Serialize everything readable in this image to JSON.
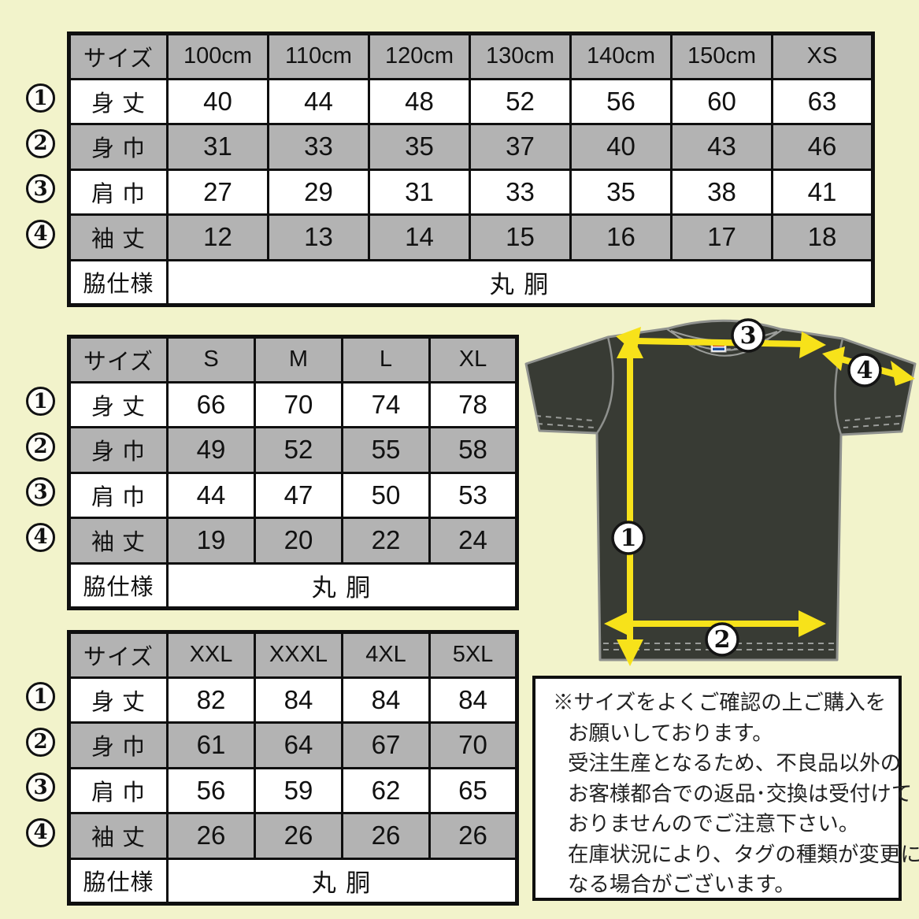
{
  "colors": {
    "background": "#f2f3cb",
    "shaded_cell": "#b3b3b3",
    "table_border": "#0f0f0f",
    "shirt_body": "#383b34",
    "shirt_outline": "#8f918e",
    "arrow_yellow": "#f7e21a",
    "tag_red": "#c5321f",
    "tag_blue": "#1f4fa0"
  },
  "tables": [
    {
      "header": [
        "サイズ",
        "100cm",
        "110cm",
        "120cm",
        "130cm",
        "140cm",
        "150cm",
        "XS"
      ],
      "rows": [
        {
          "num": "1",
          "label": "身 丈",
          "values": [
            "40",
            "44",
            "48",
            "52",
            "56",
            "60",
            "63"
          ]
        },
        {
          "num": "2",
          "label": "身 巾",
          "values": [
            "31",
            "33",
            "35",
            "37",
            "40",
            "43",
            "46"
          ]
        },
        {
          "num": "3",
          "label": "肩 巾",
          "values": [
            "27",
            "29",
            "31",
            "33",
            "35",
            "38",
            "41"
          ]
        },
        {
          "num": "4",
          "label": "袖 丈",
          "values": [
            "12",
            "13",
            "14",
            "15",
            "16",
            "17",
            "18"
          ]
        }
      ],
      "footer_label": "脇仕様",
      "footer_value": "丸 胴"
    },
    {
      "header": [
        "サイズ",
        "S",
        "M",
        "L",
        "XL"
      ],
      "rows": [
        {
          "num": "1",
          "label": "身 丈",
          "values": [
            "66",
            "70",
            "74",
            "78"
          ]
        },
        {
          "num": "2",
          "label": "身 巾",
          "values": [
            "49",
            "52",
            "55",
            "58"
          ]
        },
        {
          "num": "3",
          "label": "肩 巾",
          "values": [
            "44",
            "47",
            "50",
            "53"
          ]
        },
        {
          "num": "4",
          "label": "袖 丈",
          "values": [
            "19",
            "20",
            "22",
            "24"
          ]
        }
      ],
      "footer_label": "脇仕様",
      "footer_value": "丸 胴"
    },
    {
      "header": [
        "サイズ",
        "XXL",
        "XXXL",
        "4XL",
        "5XL"
      ],
      "rows": [
        {
          "num": "1",
          "label": "身 丈",
          "values": [
            "82",
            "84",
            "84",
            "84"
          ]
        },
        {
          "num": "2",
          "label": "身 巾",
          "values": [
            "61",
            "64",
            "67",
            "70"
          ]
        },
        {
          "num": "3",
          "label": "肩 巾",
          "values": [
            "56",
            "59",
            "62",
            "65"
          ]
        },
        {
          "num": "4",
          "label": "袖 丈",
          "values": [
            "26",
            "26",
            "26",
            "26"
          ]
        }
      ],
      "footer_label": "脇仕様",
      "footer_value": "丸 胴"
    }
  ],
  "diagram": {
    "markers": [
      {
        "num": "1",
        "label": "身丈"
      },
      {
        "num": "2",
        "label": "身巾"
      },
      {
        "num": "3",
        "label": "肩巾"
      },
      {
        "num": "4",
        "label": "袖丈"
      }
    ]
  },
  "notes": {
    "lines": [
      "※サイズをよくご確認の上ご購入を",
      "お願いしております。",
      "受注生産となるため、不良品以外の",
      "お客様都合での返品･交換は受付けて",
      "おりませんのでご注意下さい。",
      "在庫状況により、タグの種類が変更に",
      "なる場合がございます。"
    ]
  }
}
